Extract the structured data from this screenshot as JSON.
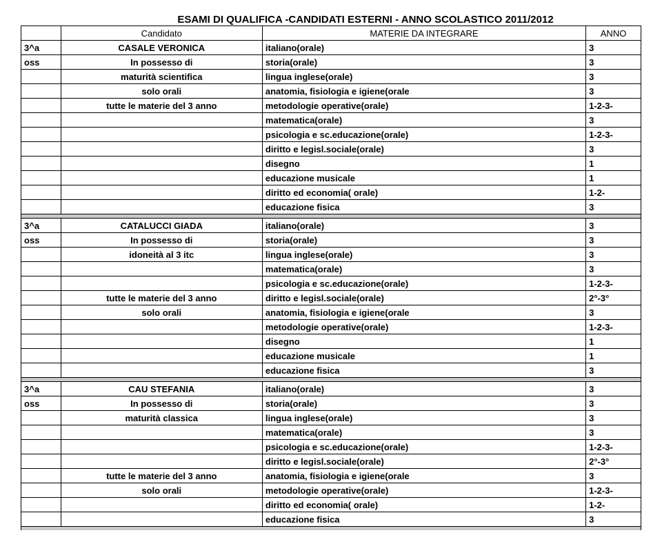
{
  "title": "ESAMI DI QUALIFICA -CANDIDATI ESTERNI - ANNO SCOLASTICO 2011/2012",
  "header": {
    "col2": "Candidato",
    "col3": "MATERIE DA INTEGRARE",
    "col4": "ANNO"
  },
  "rows": [
    [
      "3^a",
      "CASALE VERONICA",
      "italiano(orale)",
      "3"
    ],
    [
      "oss",
      "In possesso di",
      "storia(orale)",
      "3"
    ],
    [
      "",
      "maturità scientifica",
      "lingua inglese(orale)",
      "3"
    ],
    [
      "",
      "solo orali",
      "anatomia, fisiologia e igiene(orale",
      "3"
    ],
    [
      "",
      "tutte le materie del 3 anno",
      "metodologie operative(orale)",
      "1-2-3-"
    ],
    [
      "",
      "",
      "matematica(orale)",
      "3"
    ],
    [
      "",
      "",
      "psicologia e sc.educazione(orale)",
      "1-2-3-"
    ],
    [
      "",
      "",
      "diritto e legisl.sociale(orale)",
      "3"
    ],
    [
      "",
      "",
      "disegno",
      "1"
    ],
    [
      "",
      "",
      "educazione musicale",
      "1"
    ],
    [
      "",
      "",
      "diritto ed economia( orale)",
      "1-2-"
    ],
    [
      "",
      "",
      "educazione fisica",
      "3"
    ],
    "sep",
    [
      "3^a",
      "CATALUCCI GIADA",
      "italiano(orale)",
      "3"
    ],
    [
      "oss",
      "In possesso di",
      "storia(orale)",
      "3"
    ],
    [
      "",
      "idoneità al 3 itc",
      "lingua inglese(orale)",
      "3"
    ],
    [
      "",
      "",
      "matematica(orale)",
      "3"
    ],
    [
      "",
      "",
      "psicologia e sc.educazione(orale)",
      "1-2-3-"
    ],
    [
      "",
      "tutte le materie del 3 anno",
      "diritto e legisl.sociale(orale)",
      "2°-3°"
    ],
    [
      "",
      "solo orali",
      "anatomia, fisiologia e igiene(orale",
      "3"
    ],
    [
      "",
      "",
      "metodologie operative(orale)",
      "1-2-3-"
    ],
    [
      "",
      "",
      "disegno",
      "1"
    ],
    [
      "",
      "",
      "educazione musicale",
      "1"
    ],
    [
      "",
      "",
      "educazione fisica",
      "3"
    ],
    "sep",
    [
      "3^a",
      "CAU STEFANIA",
      "italiano(orale)",
      "3"
    ],
    [
      "oss",
      "In possesso di",
      "storia(orale)",
      "3"
    ],
    [
      "",
      "maturità classica",
      "lingua inglese(orale)",
      "3"
    ],
    [
      "",
      "",
      "matematica(orale)",
      "3"
    ],
    [
      "",
      "",
      "psicologia e sc.educazione(orale)",
      "1-2-3-"
    ],
    [
      "",
      "",
      "diritto e legisl.sociale(orale)",
      "2°-3°"
    ],
    [
      "",
      "tutte le materie del 3 anno",
      "anatomia, fisiologia e igiene(orale",
      "3"
    ],
    [
      "",
      "solo orali",
      "metodologie operative(orale)",
      "1-2-3-"
    ],
    [
      "",
      "",
      "diritto ed economia( orale)",
      "1-2-"
    ],
    [
      "",
      "",
      "educazione fisica",
      "3"
    ],
    "sep"
  ]
}
